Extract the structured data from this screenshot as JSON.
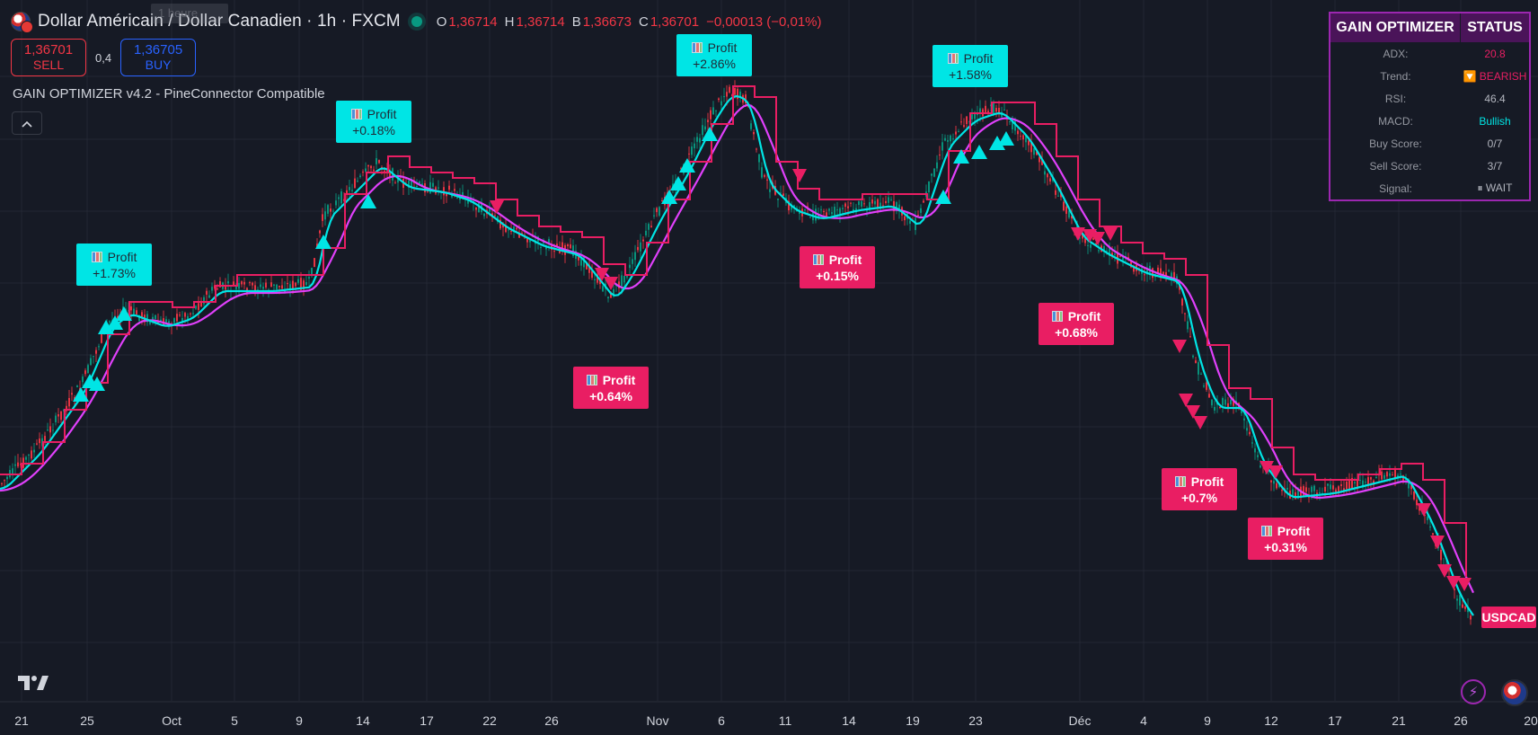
{
  "header": {
    "symbol_title": "Dollar Américain / Dollar Canadien · 1h · FXCM",
    "ghost_label": "1 heure",
    "ohlc": [
      {
        "key": "O",
        "value": "1,36714"
      },
      {
        "key": "H",
        "value": "1,36714"
      },
      {
        "key": "B",
        "value": "1,36673"
      },
      {
        "key": "C",
        "value": "1,36701"
      }
    ],
    "change": "−0,00013 (−0,01%)"
  },
  "trade": {
    "sell_price": "1,36701",
    "sell_label": "SELL",
    "spread": "0,4",
    "buy_price": "1,36705",
    "buy_label": "BUY"
  },
  "indicator": {
    "name": "GAIN OPTIMIZER v4.2 - PineConnector Compatible"
  },
  "status_table": {
    "col1": "GAIN OPTIMIZER",
    "col2": "STATUS",
    "rows": [
      {
        "label": "ADX:",
        "value": "20.8",
        "color": "#e91e63"
      },
      {
        "label": "Trend:",
        "value": "🔽 BEARISH",
        "color": "#e91e63"
      },
      {
        "label": "RSI:",
        "value": "46.4",
        "color": "#b2b5be"
      },
      {
        "label": "MACD:",
        "value": "Bullish",
        "color": "#00e5e5"
      },
      {
        "label": "Buy Score:",
        "value": "0/7",
        "color": "#b2b5be"
      },
      {
        "label": "Sell Score:",
        "value": "3/7",
        "color": "#b2b5be"
      },
      {
        "label": "Signal:",
        "value": "⏸ WAIT",
        "color": "#b2b5be"
      }
    ]
  },
  "profit_labels": [
    {
      "title": "Profit",
      "pct": "+1.73%",
      "style": "cyan"
    },
    {
      "title": "Profit",
      "pct": "+0.18%",
      "style": "cyan"
    },
    {
      "title": "Profit",
      "pct": "+0.64%",
      "style": "pink"
    },
    {
      "title": "Profit",
      "pct": "+2.86%",
      "style": "cyan"
    },
    {
      "title": "Profit",
      "pct": "+0.15%",
      "style": "pink"
    },
    {
      "title": "Profit",
      "pct": "+1.58%",
      "style": "cyan"
    },
    {
      "title": "Profit",
      "pct": "+0.68%",
      "style": "pink"
    },
    {
      "title": "Profit",
      "pct": "+0.7%",
      "style": "pink"
    },
    {
      "title": "Profit",
      "pct": "+0.31%",
      "style": "pink"
    }
  ],
  "price_tag": "USDCAD",
  "x_axis": [
    "21",
    "25",
    "Oct",
    "5",
    "9",
    "14",
    "17",
    "22",
    "26",
    "Nov",
    "6",
    "11",
    "14",
    "19",
    "23",
    "Déc",
    "4",
    "9",
    "12",
    "17",
    "21",
    "26",
    "20"
  ],
  "colors": {
    "background": "#161a25",
    "fast_line": "#00e5e5",
    "slow_line": "#e040fb",
    "step_line": "#e91e63",
    "candle_up": "#089981",
    "candle_down": "#f23645",
    "buy_marker": "#00e5e5",
    "sell_marker": "#e91e63"
  }
}
